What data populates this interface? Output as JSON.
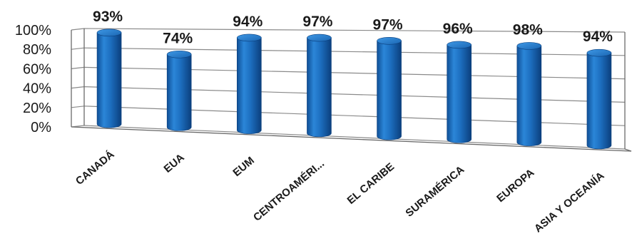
{
  "chart_data": {
    "type": "bar",
    "categories": [
      "CANADÁ",
      "EUA",
      "EUM",
      "CENTROAMÉRI...",
      "EL CARIBE",
      "SURAMÉRICA",
      "EUROPA",
      "ASIA Y OCEANÍA"
    ],
    "values": [
      93,
      74,
      94,
      97,
      97,
      96,
      98,
      94
    ],
    "data_labels": [
      "93%",
      "74%",
      "94%",
      "97%",
      "97%",
      "96%",
      "98%",
      "94%"
    ],
    "y_ticks": [
      "0%",
      "20%",
      "40%",
      "60%",
      "80%",
      "100%"
    ],
    "ylim": [
      0,
      100
    ],
    "title": "",
    "xlabel": "",
    "ylabel": "",
    "grid": true,
    "legend": "none",
    "bar_shape": "3d-cylinder",
    "bar_color": "#1d6fc0"
  }
}
